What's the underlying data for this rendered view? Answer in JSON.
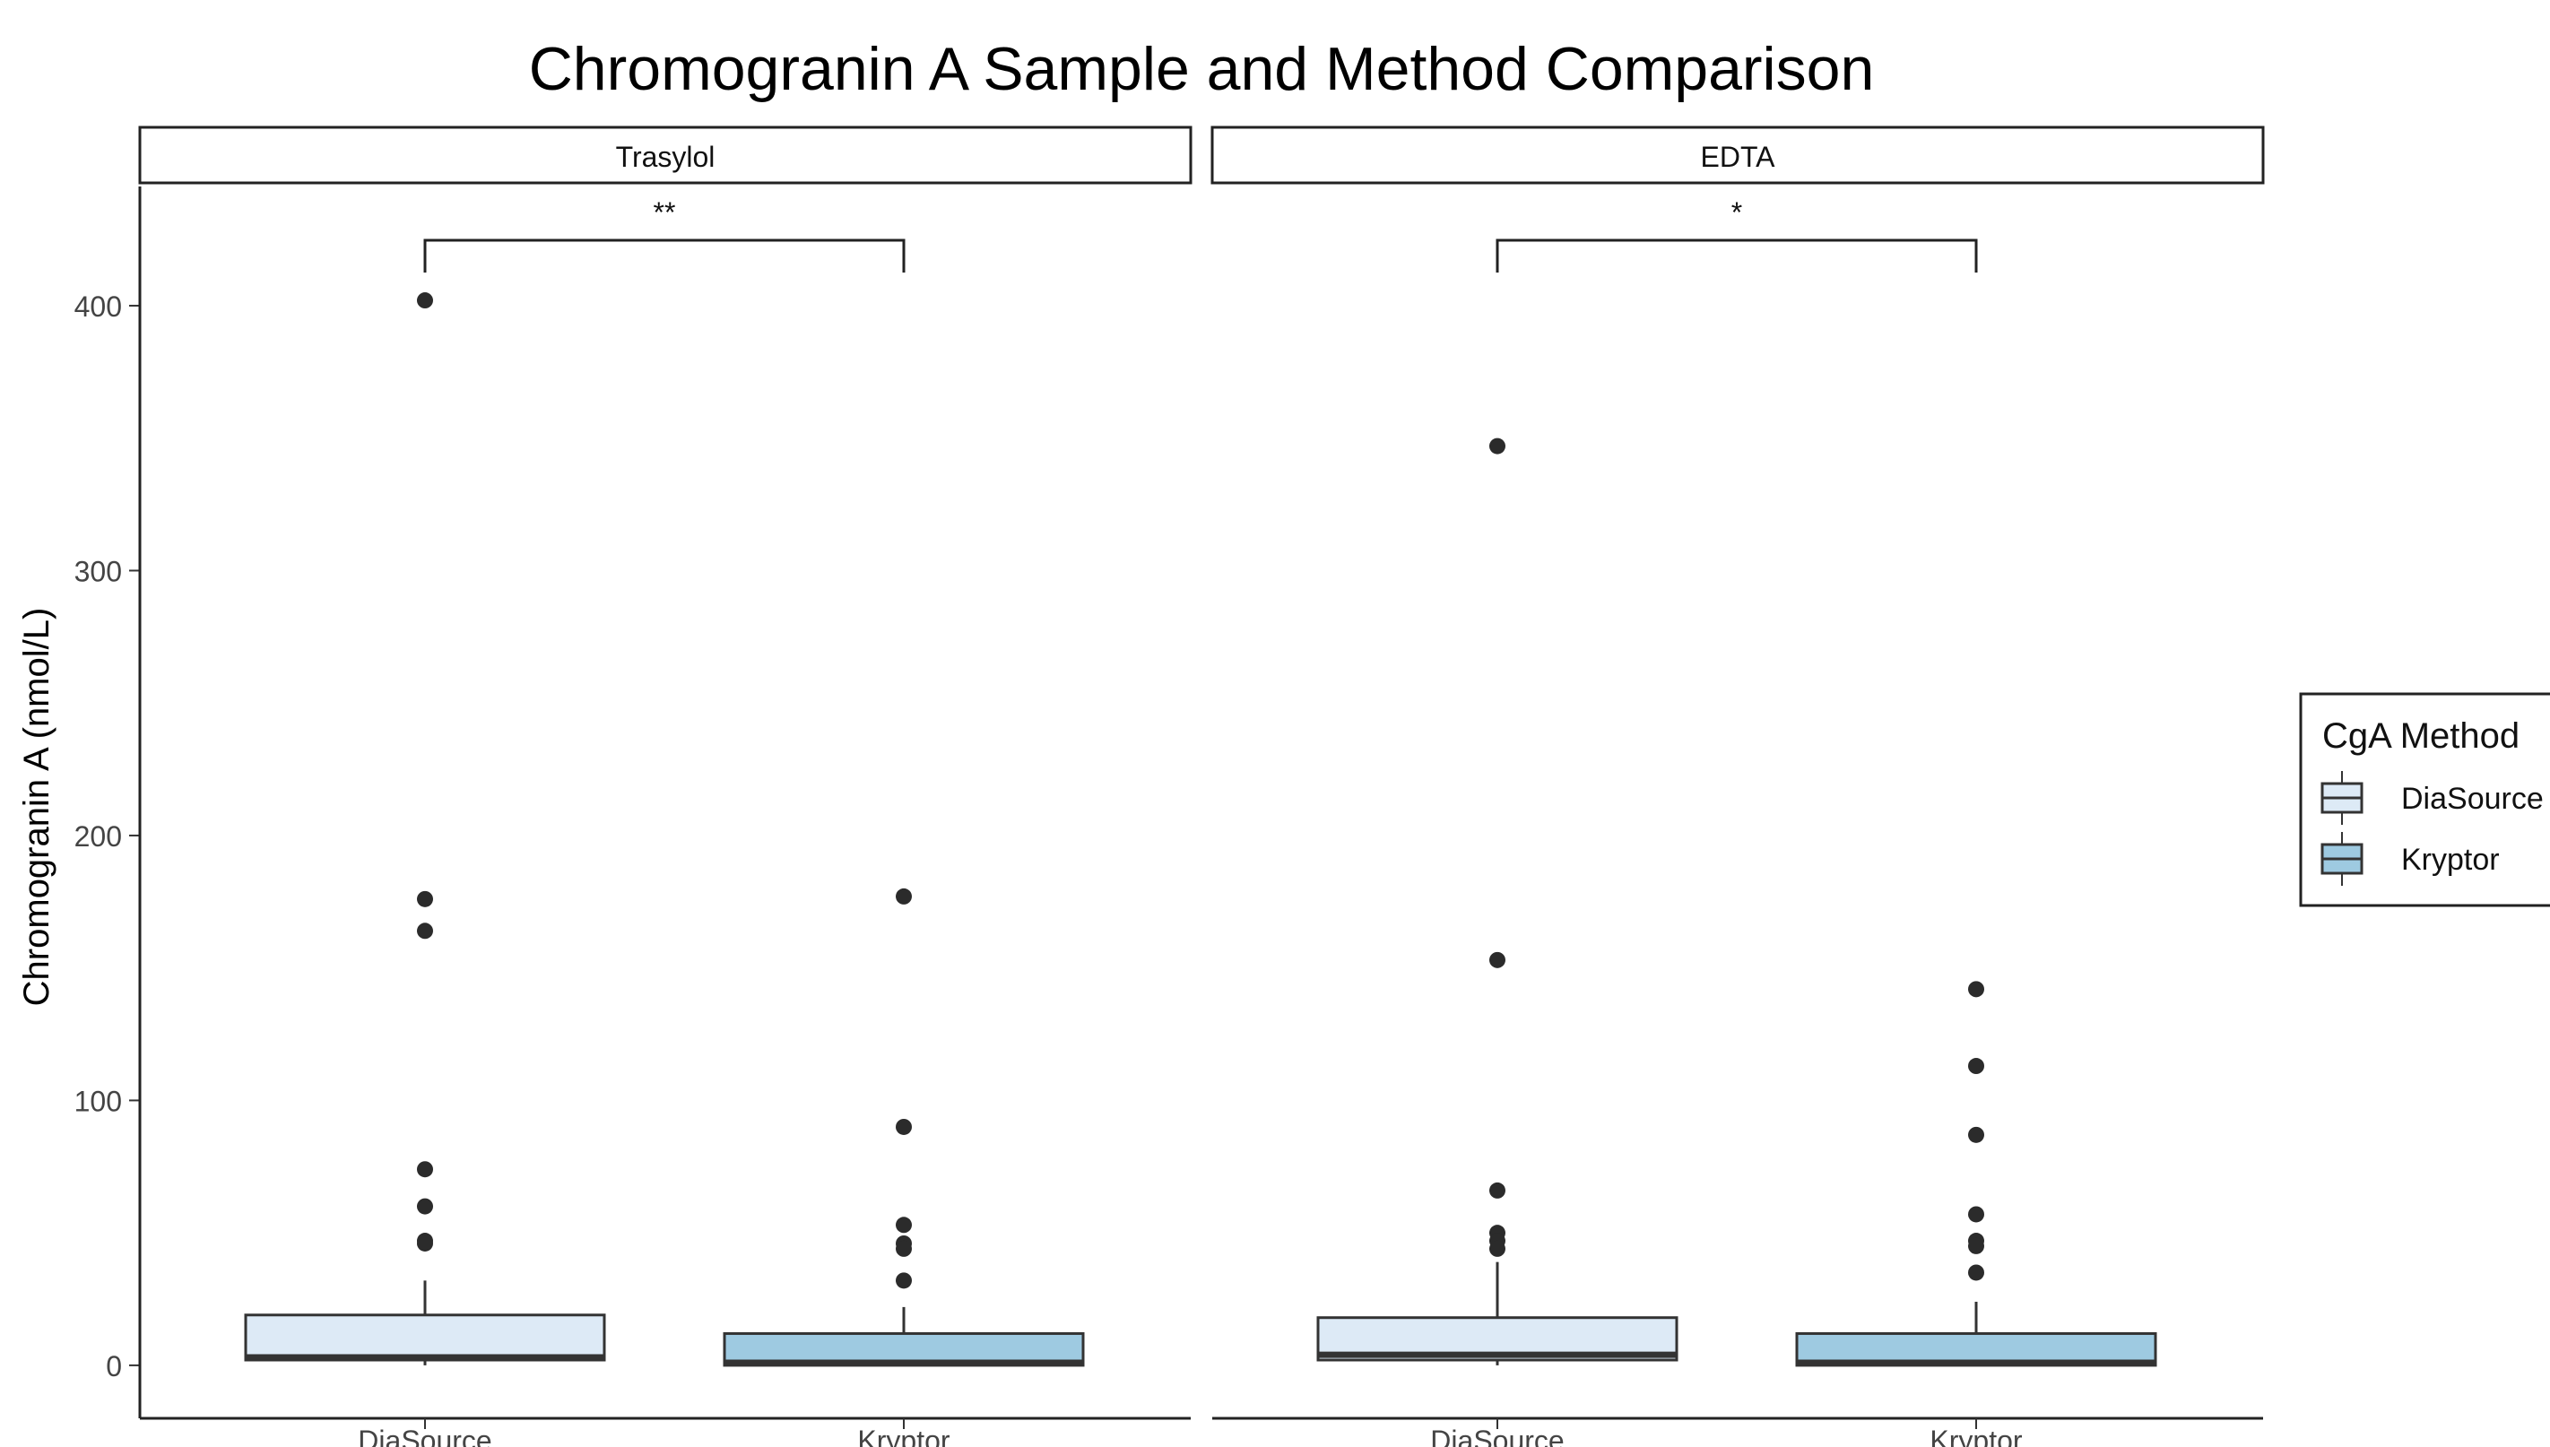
{
  "chart_data": {
    "type": "box",
    "title": "Chromogranin A Sample and Method Comparison",
    "ylabel": "Chromogranin A (nmol/L)",
    "xlabel": "",
    "ylim": [
      -20,
      445
    ],
    "yticks": [
      0,
      100,
      200,
      300,
      400
    ],
    "categories": [
      "DiaSource",
      "Kryptor"
    ],
    "facets": [
      {
        "name": "Trasylol",
        "significance": "**",
        "boxes": [
          {
            "category": "DiaSource",
            "q1": 2,
            "median": 3,
            "q3": 19,
            "whisker_low": 0,
            "whisker_high": 32,
            "outliers": [
              402,
              176,
              164,
              74,
              60,
              47,
              46
            ]
          },
          {
            "category": "Kryptor",
            "q1": 0,
            "median": 1,
            "q3": 12,
            "whisker_low": 0,
            "whisker_high": 22,
            "outliers": [
              177,
              90,
              53,
              46,
              44,
              32
            ]
          }
        ]
      },
      {
        "name": "EDTA",
        "significance": "*",
        "boxes": [
          {
            "category": "DiaSource",
            "q1": 2,
            "median": 4,
            "q3": 18,
            "whisker_low": 0,
            "whisker_high": 39,
            "outliers": [
              347,
              153,
              66,
              50,
              47,
              44
            ]
          },
          {
            "category": "Kryptor",
            "q1": 0,
            "median": 1,
            "q3": 12,
            "whisker_low": 0,
            "whisker_high": 24,
            "outliers": [
              142,
              113,
              87,
              57,
              47,
              45,
              35
            ]
          }
        ]
      }
    ],
    "legend": {
      "title": "CgA Method",
      "position": "right",
      "entries": [
        {
          "label": "DiaSource",
          "color": "#ddeaf6"
        },
        {
          "label": "Kryptor",
          "color": "#9ecae1"
        }
      ]
    }
  },
  "colors": {
    "DiaSource": "#ddeaf6",
    "Kryptor": "#9ecae1",
    "line": "#333333",
    "point": "#2b2b2b"
  }
}
